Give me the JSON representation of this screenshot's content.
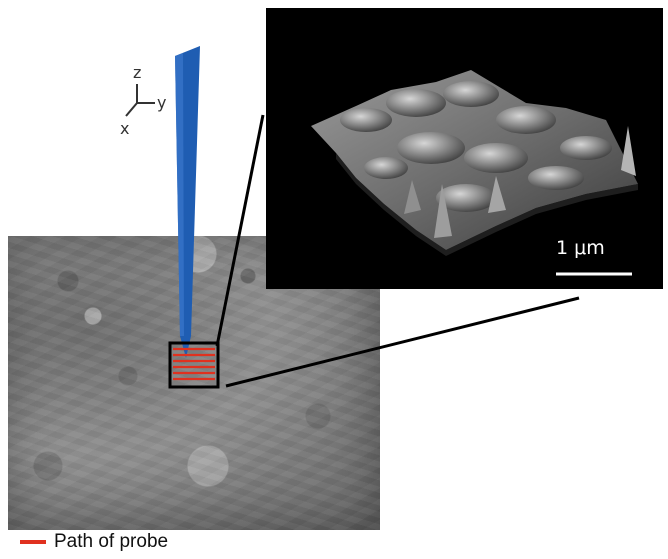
{
  "axes": {
    "z": "z",
    "y": "y",
    "x": "x"
  },
  "scale_bar": {
    "label": "1 μm"
  },
  "legend": {
    "label": "Path of probe",
    "color": "#e0311f"
  },
  "probe_color": "#1f5db2",
  "scan_box_color": "#000000",
  "scan_path_color": "#e0311f"
}
